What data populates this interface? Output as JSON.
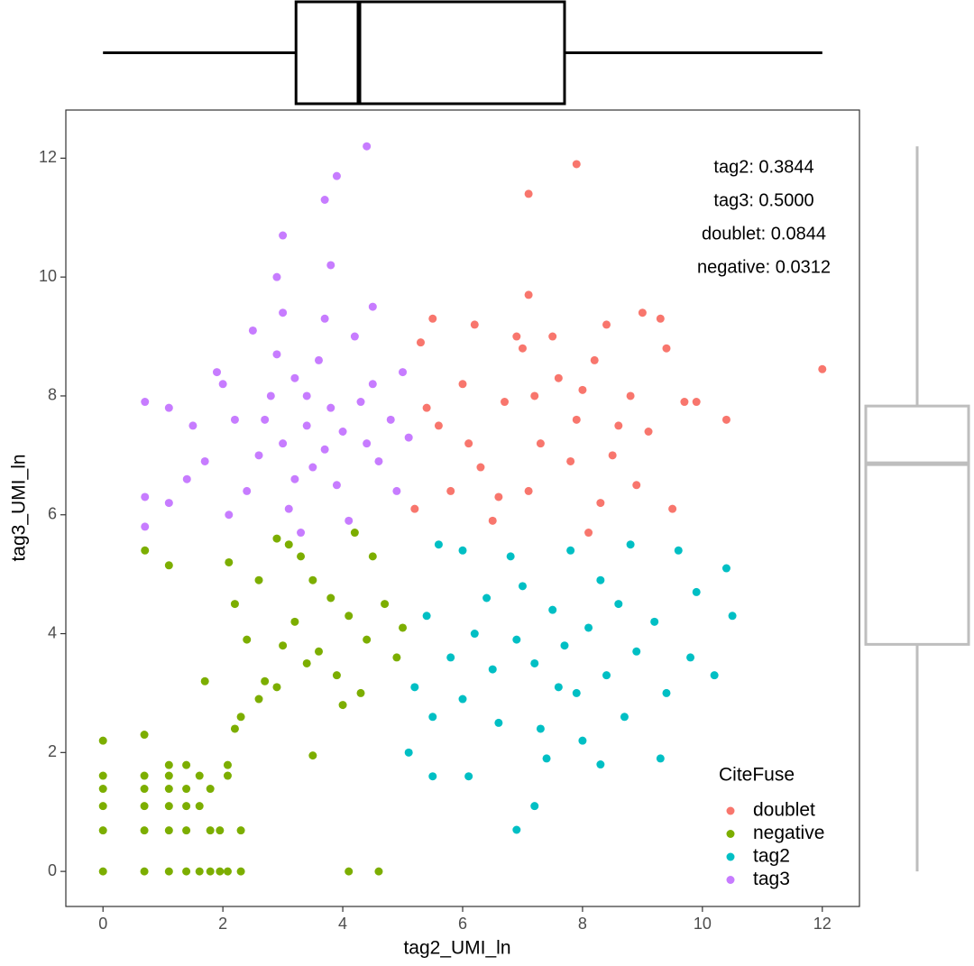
{
  "chart_data": {
    "type": "scatter",
    "xlabel": "tag2_UMI_ln",
    "ylabel": "tag3_UMI_ln",
    "xlim": [
      -0.62,
      12.62
    ],
    "ylim": [
      -0.59,
      12.81
    ],
    "xticks": [
      0,
      2,
      4,
      6,
      8,
      10,
      12
    ],
    "yticks": [
      0,
      2,
      4,
      6,
      8,
      10,
      12
    ],
    "legend_title": "CiteFuse",
    "legend_position": "bottom-right",
    "annotations": [
      "tag2: 0.3844",
      "tag3: 0.5000",
      "doublet: 0.0844",
      "negative: 0.0312"
    ],
    "series": [
      {
        "name": "doublet",
        "color": "#F8766D",
        "x": [
          5.3,
          5.6,
          6.0,
          6.3,
          6.7,
          7.0,
          7.3,
          7.6,
          7.9,
          8.2,
          8.5,
          8.8,
          9.1,
          9.4,
          9.7,
          5.2,
          5.8,
          6.5,
          7.1,
          7.8,
          8.3,
          8.9,
          9.5,
          5.5,
          6.2,
          6.9,
          7.5,
          8.4,
          9.0,
          9.3,
          5.4,
          6.1,
          7.2,
          8.0,
          8.6,
          9.9,
          10.4,
          7.1,
          7.9,
          7.1,
          12.0,
          6.6,
          8.1
        ],
        "y": [
          8.9,
          7.5,
          8.2,
          6.8,
          7.9,
          8.8,
          7.2,
          8.3,
          7.6,
          8.6,
          7.0,
          8.0,
          7.4,
          8.8,
          7.9,
          6.1,
          6.4,
          5.9,
          6.4,
          6.9,
          6.2,
          6.5,
          6.1,
          9.3,
          9.2,
          9.0,
          9.0,
          9.2,
          9.4,
          9.3,
          7.8,
          7.2,
          8.0,
          8.1,
          7.5,
          7.9,
          7.6,
          9.7,
          11.9,
          11.4,
          8.45,
          6.3,
          5.7
        ]
      },
      {
        "name": "negative",
        "color": "#7CAE00",
        "x": [
          0,
          0,
          0,
          0,
          0,
          0,
          0.69,
          0.69,
          0.69,
          0.69,
          0.69,
          0.69,
          1.1,
          1.1,
          1.1,
          1.1,
          1.1,
          1.1,
          1.39,
          1.39,
          1.39,
          1.39,
          1.39,
          1.61,
          1.61,
          1.61,
          1.79,
          1.79,
          1.79,
          1.95,
          1.95,
          2.08,
          2.08,
          2.08,
          2.3,
          2.3,
          4.1,
          4.6,
          2.2,
          2.3,
          2.6,
          2.4,
          2.2,
          2.7,
          2.9,
          3.1,
          3.3,
          2.9,
          3.5,
          3.2,
          3.6,
          3.9,
          4.1,
          4.4,
          4.7,
          4.9,
          5.0,
          4.3,
          3.8,
          3.0,
          2.6,
          3.5,
          1.7,
          1.1,
          0.7,
          2.1,
          4.5,
          4.0,
          3.4,
          4.2
        ],
        "y": [
          0,
          0.69,
          1.1,
          1.39,
          1.61,
          2.2,
          0,
          0.69,
          1.1,
          1.39,
          1.61,
          2.3,
          0,
          0.69,
          1.1,
          1.39,
          1.61,
          1.79,
          0,
          0.69,
          1.1,
          1.39,
          1.79,
          0,
          1.1,
          1.61,
          0,
          0.69,
          1.39,
          0,
          0.69,
          0,
          1.61,
          1.79,
          0,
          0.69,
          0,
          0,
          2.4,
          2.6,
          2.9,
          3.9,
          4.5,
          3.2,
          3.1,
          5.5,
          5.3,
          5.6,
          4.9,
          4.2,
          3.7,
          3.3,
          4.3,
          3.9,
          4.5,
          3.6,
          4.1,
          3.0,
          4.6,
          3.8,
          4.9,
          1.95,
          3.2,
          5.15,
          5.4,
          5.2,
          5.3,
          2.8,
          3.5,
          5.7
        ]
      },
      {
        "name": "tag2",
        "color": "#00BFC4",
        "x": [
          7.7,
          7.2,
          8.1,
          7.5,
          8.4,
          6.9,
          7.9,
          8.6,
          7.0,
          6.5,
          8.9,
          9.2,
          6.2,
          5.8,
          5.4,
          5.2,
          5.5,
          6.0,
          6.6,
          7.3,
          8.0,
          8.7,
          9.4,
          9.8,
          10.2,
          10.5,
          10.4,
          9.6,
          8.8,
          7.8,
          6.8,
          6.0,
          5.6,
          7.4,
          6.1,
          8.3,
          9.3,
          5.1,
          5.5,
          7.2,
          6.9,
          9.9,
          6.4,
          7.6,
          8.3
        ],
        "y": [
          3.8,
          3.5,
          4.1,
          4.4,
          3.3,
          3.9,
          3.0,
          4.5,
          4.8,
          3.4,
          3.7,
          4.2,
          4.0,
          3.6,
          4.3,
          3.1,
          2.6,
          2.9,
          2.5,
          2.4,
          2.2,
          2.6,
          3.0,
          3.6,
          3.3,
          4.3,
          5.1,
          5.4,
          5.5,
          5.4,
          5.3,
          5.4,
          5.5,
          1.9,
          1.6,
          1.8,
          1.9,
          2.0,
          1.6,
          1.1,
          0.7,
          4.7,
          4.6,
          3.1,
          4.9
        ]
      },
      {
        "name": "tag3",
        "color": "#C77CFF",
        "x": [
          3.4,
          3.0,
          3.8,
          2.8,
          3.5,
          4.0,
          3.2,
          3.6,
          4.3,
          2.4,
          3.9,
          3.1,
          2.9,
          4.5,
          4.8,
          5.0,
          4.6,
          2.2,
          2.0,
          1.7,
          1.5,
          1.1,
          1.1,
          0.7,
          0.7,
          0.7,
          1.4,
          3.3,
          4.1,
          3.7,
          3.0,
          2.5,
          4.2,
          4.5,
          3.2,
          3.7,
          2.7,
          4.4,
          3.4,
          2.1,
          1.9,
          4.9,
          5.1,
          4.4,
          3.9,
          3.7,
          3.0,
          3.8,
          2.9,
          2.6
        ],
        "y": [
          7.5,
          7.2,
          7.8,
          8.0,
          6.8,
          7.4,
          8.3,
          8.6,
          7.9,
          6.4,
          6.5,
          6.1,
          8.7,
          8.2,
          7.6,
          8.4,
          6.9,
          7.6,
          8.2,
          6.9,
          7.5,
          7.8,
          6.2,
          7.9,
          6.3,
          5.8,
          6.6,
          5.7,
          5.9,
          9.3,
          9.4,
          9.1,
          9.0,
          9.5,
          6.6,
          7.1,
          7.6,
          7.2,
          8.0,
          6.0,
          8.4,
          6.4,
          7.3,
          12.2,
          11.7,
          11.3,
          10.7,
          10.2,
          10.0,
          7.0
        ]
      }
    ],
    "marginal_x_box": {
      "color": "#000000",
      "min": 0,
      "q1": 3.22,
      "median": 4.27,
      "q3": 7.7,
      "max": 12.0
    },
    "marginal_y_box": {
      "color": "#BEBEBE",
      "min": 0,
      "q1": 3.82,
      "median": 6.86,
      "q3": 7.83,
      "max": 12.2
    }
  }
}
